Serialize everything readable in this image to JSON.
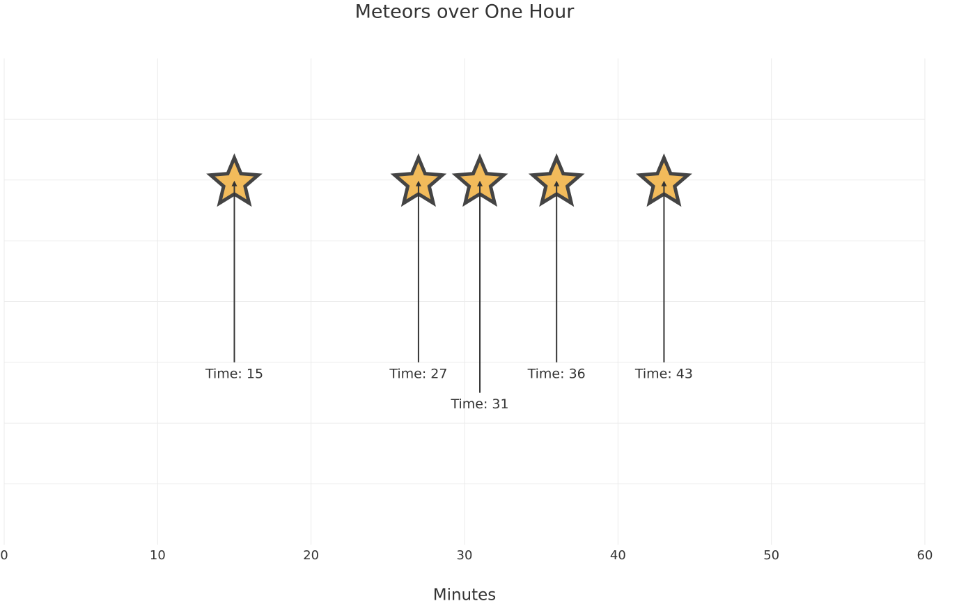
{
  "chart_data": {
    "type": "scatter",
    "title": "Meteors over One Hour",
    "x_label": "Minutes",
    "x": [
      15,
      27,
      31,
      36,
      43
    ],
    "y": [
      6,
      6,
      6,
      6,
      6
    ],
    "marker": "star",
    "color": "#f2bb5b",
    "edge_color": "#444444",
    "annotations": [
      {
        "text": "Time: 15",
        "tail_y": 3
      },
      {
        "text": "Time: 27",
        "tail_y": 3
      },
      {
        "text": "Time: 31",
        "tail_y": 2.5
      },
      {
        "text": "Time: 36",
        "tail_y": 3
      },
      {
        "text": "Time: 43",
        "tail_y": 3
      }
    ],
    "xlim": [
      0,
      60
    ],
    "xticks": [
      0,
      10,
      20,
      30,
      40,
      50,
      60
    ],
    "ylim": [
      0,
      8
    ],
    "yticks": [
      1,
      2,
      3,
      4,
      5,
      6,
      7
    ],
    "ytick_labels": false,
    "grid": true
  }
}
